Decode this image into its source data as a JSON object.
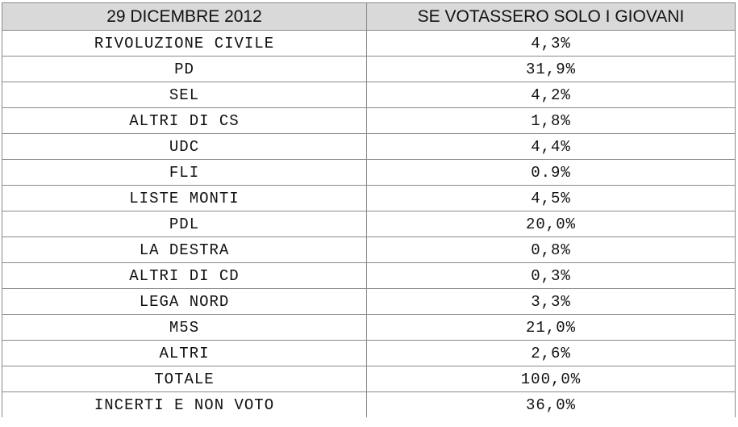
{
  "table": {
    "headers": [
      "29 DICEMBRE 2012",
      "SE VOTASSERO SOLO I GIOVANI"
    ],
    "rows": [
      {
        "party": "RIVOLUZIONE CIVILE",
        "value": "4,3%"
      },
      {
        "party": "PD",
        "value": "31,9%"
      },
      {
        "party": "SEL",
        "value": "4,2%"
      },
      {
        "party": "ALTRI DI CS",
        "value": "1,8%"
      },
      {
        "party": "UDC",
        "value": "4,4%"
      },
      {
        "party": "FLI",
        "value": "0.9%"
      },
      {
        "party": "LISTE MONTI",
        "value": "4,5%"
      },
      {
        "party": "PDL",
        "value": "20,0%"
      },
      {
        "party": "LA DESTRA",
        "value": "0,8%"
      },
      {
        "party": "ALTRI DI CD",
        "value": "0,3%"
      },
      {
        "party": "LEGA NORD",
        "value": "3,3%"
      },
      {
        "party": "M5S",
        "value": "21,0%"
      },
      {
        "party": "ALTRI",
        "value": "2,6%"
      },
      {
        "party": "TOTALE",
        "value": "100,0%"
      },
      {
        "party": "INCERTI E NON VOTO",
        "value": "36,0%"
      }
    ]
  }
}
